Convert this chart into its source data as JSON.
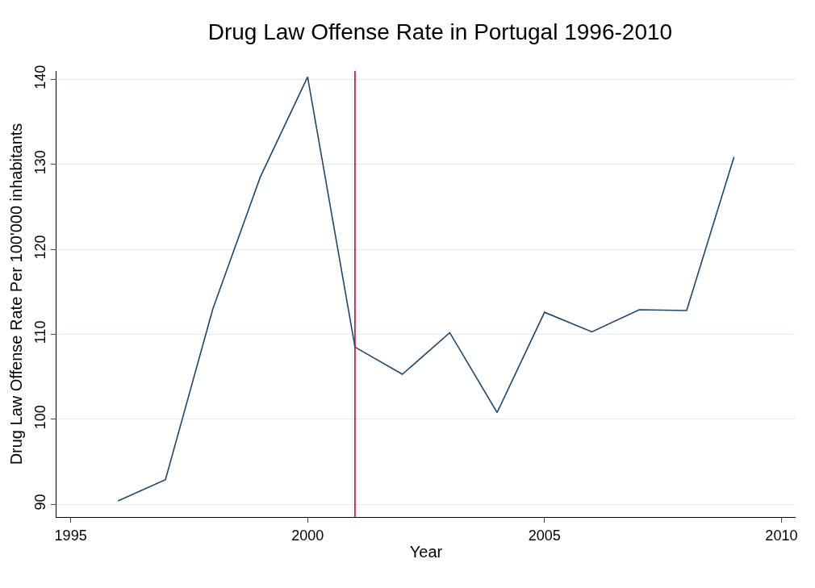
{
  "chart_data": {
    "type": "line",
    "title": "Drug Law Offense Rate in Portugal 1996-2010",
    "xlabel": "Year",
    "ylabel": "Drug Law Offense Rate Per 100'000 inhabitants",
    "x": [
      1996,
      1997,
      1998,
      1999,
      2000,
      2001,
      2002,
      2003,
      2004,
      2005,
      2006,
      2007,
      2008,
      2009
    ],
    "series": [
      {
        "color": "#1a476f",
        "values": [
          90.4,
          92.9,
          113.0,
          128.5,
          140.3,
          108.5,
          105.3,
          110.2,
          100.8,
          112.6,
          110.3,
          112.9,
          112.8,
          130.9
        ]
      }
    ],
    "xlim": [
      1994.7,
      2010.3
    ],
    "xticks": [
      1995,
      2000,
      2005,
      2010
    ],
    "ylim": [
      88.5,
      141
    ],
    "yticks": [
      90,
      100,
      110,
      120,
      130,
      140
    ],
    "ref_lines": [
      {
        "axis": "x",
        "value": 2001,
        "color": "#c10534"
      }
    ],
    "grid": "y",
    "marker": "none",
    "line_style": "solid"
  }
}
